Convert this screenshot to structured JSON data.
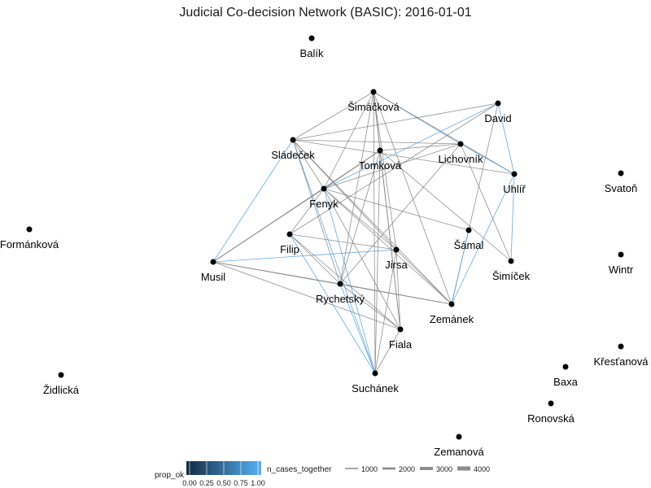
{
  "title": "Judicial Co-decision Network (BASIC): 2016-01-01",
  "nodes": [
    {
      "id": "Balik",
      "label": "Balík"
    },
    {
      "id": "Simackova",
      "label": "Šimáčková"
    },
    {
      "id": "David",
      "label": "David"
    },
    {
      "id": "Sladecek",
      "label": "Sládeček"
    },
    {
      "id": "Tomkova",
      "label": "Tomková"
    },
    {
      "id": "Lichovnik",
      "label": "Lichovník"
    },
    {
      "id": "Uhlir",
      "label": "Uhlíř"
    },
    {
      "id": "Svaton",
      "label": "Svatoň"
    },
    {
      "id": "Fenyk",
      "label": "Fenyk"
    },
    {
      "id": "Formankova",
      "label": "Formánková"
    },
    {
      "id": "Filip",
      "label": "Filip"
    },
    {
      "id": "Samal",
      "label": "Šámal"
    },
    {
      "id": "Wintr",
      "label": "Wintr"
    },
    {
      "id": "Jirsa",
      "label": "Jirsa"
    },
    {
      "id": "Simicek",
      "label": "Šimíček"
    },
    {
      "id": "Musil",
      "label": "Musil"
    },
    {
      "id": "Rychetsky",
      "label": "Rychetský"
    },
    {
      "id": "Zemanek",
      "label": "Zemánek"
    },
    {
      "id": "Fiala",
      "label": "Fiala"
    },
    {
      "id": "Krestanova",
      "label": "Křesťanová"
    },
    {
      "id": "Baxa",
      "label": "Baxa"
    },
    {
      "id": "Zidlicka",
      "label": "Židlická"
    },
    {
      "id": "Suchanek",
      "label": "Suchánek"
    },
    {
      "id": "Ronovska",
      "label": "Ronovská"
    },
    {
      "id": "Zemanova",
      "label": "Zemanová"
    }
  ],
  "edges": [
    {
      "source": "Simackova",
      "target": "Sladecek",
      "prop_ok": 0.55
    },
    {
      "source": "Simackova",
      "target": "Tomkova",
      "prop_ok": 0.35
    },
    {
      "source": "Simackova",
      "target": "Fenyk",
      "prop_ok": 0.4
    },
    {
      "source": "Simackova",
      "target": "Lichovnik",
      "prop_ok": 0.9
    },
    {
      "source": "Simackova",
      "target": "Uhlir",
      "prop_ok": 0.5
    },
    {
      "source": "Simackova",
      "target": "Jirsa",
      "prop_ok": 0.45
    },
    {
      "source": "Simackova",
      "target": "Rychetsky",
      "prop_ok": 0.3
    },
    {
      "source": "Simackova",
      "target": "Fiala",
      "prop_ok": 0.4
    },
    {
      "source": "Simackova",
      "target": "Zemanek",
      "prop_ok": 0.5
    },
    {
      "source": "Simackova",
      "target": "Suchanek",
      "prop_ok": 0.55
    },
    {
      "source": "Sladecek",
      "target": "Lichovnik",
      "prop_ok": 0.45
    },
    {
      "source": "Sladecek",
      "target": "David",
      "prop_ok": 0.5
    },
    {
      "source": "Sladecek",
      "target": "Uhlir",
      "prop_ok": 0.5
    },
    {
      "source": "Sladecek",
      "target": "Fenyk",
      "prop_ok": 0.3
    },
    {
      "source": "Sladecek",
      "target": "Jirsa",
      "prop_ok": 0.45
    },
    {
      "source": "Sladecek",
      "target": "Zemanek",
      "prop_ok": 0.5
    },
    {
      "source": "Sladecek",
      "target": "Suchanek",
      "prop_ok": 0.95
    },
    {
      "source": "Sladecek",
      "target": "Rychetsky",
      "prop_ok": 0.4
    },
    {
      "source": "Tomkova",
      "target": "Musil",
      "prop_ok": 0.45
    },
    {
      "source": "Tomkova",
      "target": "Lichovnik",
      "prop_ok": 0.45
    },
    {
      "source": "Tomkova",
      "target": "Rychetsky",
      "prop_ok": 0.4
    },
    {
      "source": "Tomkova",
      "target": "Fiala",
      "prop_ok": 0.4
    },
    {
      "source": "Tomkova",
      "target": "Suchanek",
      "prop_ok": 0.4
    },
    {
      "source": "Tomkova",
      "target": "Simicek",
      "prop_ok": 0.5
    },
    {
      "source": "Tomkova",
      "target": "Fenyk",
      "prop_ok": 0.35
    },
    {
      "source": "David",
      "target": "Fenyk",
      "prop_ok": 0.85
    },
    {
      "source": "David",
      "target": "Filip",
      "prop_ok": 0.5
    },
    {
      "source": "David",
      "target": "Uhlir",
      "prop_ok": 0.9
    },
    {
      "source": "David",
      "target": "Zemanek",
      "prop_ok": 0.5
    },
    {
      "source": "Lichovnik",
      "target": "Fenyk",
      "prop_ok": 0.5
    },
    {
      "source": "Lichovnik",
      "target": "Uhlir",
      "prop_ok": 0.9
    },
    {
      "source": "Lichovnik",
      "target": "Simicek",
      "prop_ok": 0.45
    },
    {
      "source": "Lichovnik",
      "target": "Rychetsky",
      "prop_ok": 0.3
    },
    {
      "source": "Uhlir",
      "target": "Simicek",
      "prop_ok": 0.9
    },
    {
      "source": "Uhlir",
      "target": "Zemanek",
      "prop_ok": 0.95
    },
    {
      "source": "Fenyk",
      "target": "Musil",
      "prop_ok": 0.3
    },
    {
      "source": "Fenyk",
      "target": "Jirsa",
      "prop_ok": 0.45
    },
    {
      "source": "Fenyk",
      "target": "Samal",
      "prop_ok": 0.5
    },
    {
      "source": "Fenyk",
      "target": "Suchanek",
      "prop_ok": 0.9
    },
    {
      "source": "Fenyk",
      "target": "Filip",
      "prop_ok": 0.4
    },
    {
      "source": "Fenyk",
      "target": "Fiala",
      "prop_ok": 0.45
    },
    {
      "source": "Fenyk",
      "target": "Zemanek",
      "prop_ok": 0.5
    },
    {
      "source": "Sladecek",
      "target": "Musil",
      "prop_ok": 0.9
    },
    {
      "source": "Filip",
      "target": "Jirsa",
      "prop_ok": 0.5
    },
    {
      "source": "Filip",
      "target": "Rychetsky",
      "prop_ok": 0.45
    },
    {
      "source": "Filip",
      "target": "Suchanek",
      "prop_ok": 0.95
    },
    {
      "source": "Filip",
      "target": "Fiala",
      "prop_ok": 0.45
    },
    {
      "source": "Musil",
      "target": "Jirsa",
      "prop_ok": 0.9
    },
    {
      "source": "Musil",
      "target": "Rychetsky",
      "prop_ok": 0.35
    },
    {
      "source": "Musil",
      "target": "Zemanek",
      "prop_ok": 0.5
    },
    {
      "source": "Musil",
      "target": "Fiala",
      "prop_ok": 0.45
    },
    {
      "source": "Jirsa",
      "target": "Zemanek",
      "prop_ok": 0.5
    },
    {
      "source": "Jirsa",
      "target": "Fiala",
      "prop_ok": 0.45
    },
    {
      "source": "Rychetsky",
      "target": "Suchanek",
      "prop_ok": 0.9
    },
    {
      "source": "Rychetsky",
      "target": "Fiala",
      "prop_ok": 0.45
    },
    {
      "source": "Rychetsky",
      "target": "Zemanek",
      "prop_ok": 0.5
    },
    {
      "source": "Samal",
      "target": "Zemanek",
      "prop_ok": 0.9
    },
    {
      "source": "Fiala",
      "target": "Suchanek",
      "prop_ok": 0.45
    },
    {
      "source": "Jirsa",
      "target": "Suchanek",
      "prop_ok": 0.5
    }
  ],
  "legend": {
    "color_title": "prop_ok",
    "color_ticks": [
      "0.00",
      "0.25",
      "0.50",
      "0.75",
      "1.00"
    ],
    "color_low": "#132B43",
    "color_high": "#56B1F7",
    "width_title": "n_cases_together",
    "width_entries": [
      "1000",
      "2000",
      "3000",
      "4000"
    ]
  },
  "colors": {
    "node": "#000000",
    "edge_gray": "#7f7f7f"
  }
}
